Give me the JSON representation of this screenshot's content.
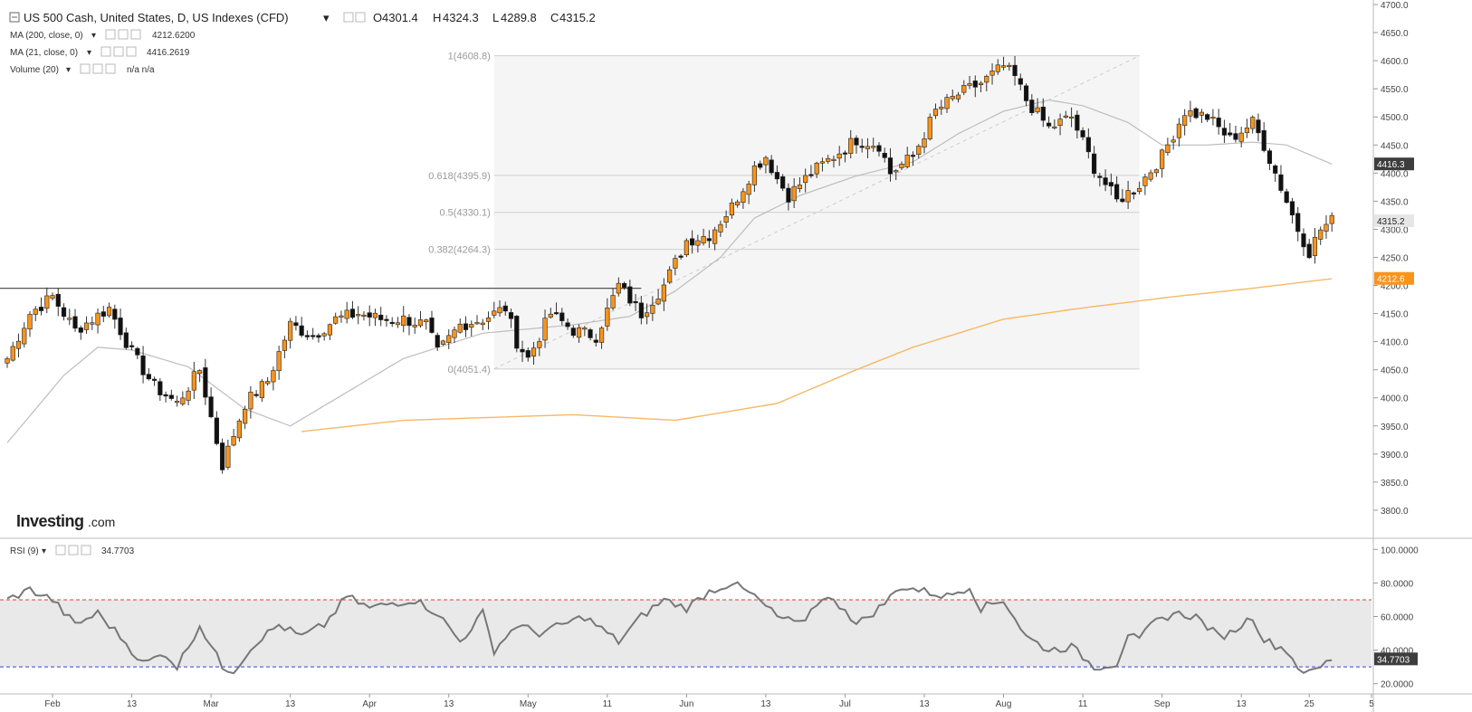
{
  "header": {
    "symbol": "US 500 Cash, United States, D, US Indexes (CFD)",
    "o_label": "O",
    "o": "4301.4",
    "h_label": "H",
    "h": "4324.3",
    "l_label": "L",
    "l": "4289.8",
    "c_label": "C",
    "c": "4315.2"
  },
  "indicators": [
    {
      "label": "MA (200, close, 0)",
      "value": "4212.6200",
      "color": "#f39c12"
    },
    {
      "label": "MA (21, close, 0)",
      "value": "4416.2619",
      "color": "#444444"
    },
    {
      "label": "Volume (20)",
      "value": "n/a  n/a",
      "color": "#444444"
    }
  ],
  "rsi_label": "RSI (9)",
  "rsi_value": "34.7703",
  "watermark": {
    "bold": "Investing",
    "light": ".com"
  },
  "price_badges": {
    "ma21": "4416.3",
    "last": "4315.2",
    "ma200": "4212.6"
  },
  "colors": {
    "up": "#f7941d",
    "down": "#111111",
    "ma200": "#f7b866",
    "ma21": "#bdbdbd",
    "rsi": "#777777",
    "ob": "#e53935",
    "os": "#2f43e0",
    "badge_dark": "#3d3d3d",
    "badge_orange": "#f7941d"
  },
  "chart_data": {
    "type": "candlestick",
    "x_axis": {
      "labels": [
        "Feb",
        "13",
        "Mar",
        "13",
        "Apr",
        "13",
        "May",
        "11",
        "Jun",
        "13",
        "Jul",
        "13",
        "Aug",
        "11",
        "Sep",
        "13",
        "25",
        "5"
      ],
      "label_indices": [
        8,
        22,
        36,
        50,
        64,
        78,
        92,
        106,
        120,
        134,
        148,
        162,
        176,
        190,
        204,
        218,
        230,
        241
      ]
    },
    "y_axis": {
      "min": 3750,
      "max": 4700,
      "ticks": [
        "4700.0",
        "4650.0",
        "4600.0",
        "4550.0",
        "4500.0",
        "4450.0",
        "4400.0",
        "4350.0",
        "4300.0",
        "4250.0",
        "4200.0",
        "4150.0",
        "4100.0",
        "4050.0",
        "4000.0",
        "3950.0",
        "3900.0",
        "3850.0",
        "3800.0"
      ]
    },
    "rsi_axis": {
      "min": 15,
      "max": 105,
      "ticks": [
        "100.0000",
        "80.0000",
        "60.0000",
        "40.0000",
        "20.0000"
      ],
      "overbought": 70,
      "oversold": 30
    },
    "horizontal_line": 4195,
    "fibonacci": {
      "start_index": 86,
      "end_index": 200,
      "low": 4051.4,
      "high": 4608.8,
      "levels": [
        {
          "label": "1(4608.8)",
          "value": 4608.8
        },
        {
          "label": "0.618(4395.9)",
          "value": 4395.9
        },
        {
          "label": "0.5(4330.1)",
          "value": 4330.1
        },
        {
          "label": "0.382(4264.3)",
          "value": 4264.3
        },
        {
          "label": "0(4051.4)",
          "value": 4051.4
        }
      ]
    },
    "close_anchors": [
      [
        0,
        4070
      ],
      [
        4,
        4150
      ],
      [
        8,
        4180
      ],
      [
        12,
        4120
      ],
      [
        18,
        4160
      ],
      [
        22,
        4080
      ],
      [
        26,
        4020
      ],
      [
        30,
        3990
      ],
      [
        34,
        4050
      ],
      [
        38,
        3880
      ],
      [
        42,
        3990
      ],
      [
        46,
        4030
      ],
      [
        50,
        4130
      ],
      [
        54,
        4110
      ],
      [
        58,
        4140
      ],
      [
        62,
        4150
      ],
      [
        66,
        4140
      ],
      [
        70,
        4140
      ],
      [
        74,
        4130
      ],
      [
        76,
        4080
      ],
      [
        80,
        4130
      ],
      [
        84,
        4140
      ],
      [
        88,
        4160
      ],
      [
        90,
        4100
      ],
      [
        92,
        4070
      ],
      [
        96,
        4150
      ],
      [
        100,
        4120
      ],
      [
        104,
        4110
      ],
      [
        108,
        4200
      ],
      [
        112,
        4150
      ],
      [
        116,
        4200
      ],
      [
        120,
        4280
      ],
      [
        124,
        4290
      ],
      [
        128,
        4340
      ],
      [
        132,
        4410
      ],
      [
        134,
        4430
      ],
      [
        136,
        4390
      ],
      [
        138,
        4360
      ],
      [
        142,
        4400
      ],
      [
        146,
        4430
      ],
      [
        150,
        4460
      ],
      [
        154,
        4450
      ],
      [
        156,
        4400
      ],
      [
        160,
        4430
      ],
      [
        164,
        4510
      ],
      [
        168,
        4540
      ],
      [
        172,
        4560
      ],
      [
        176,
        4590
      ],
      [
        178,
        4570
      ],
      [
        180,
        4530
      ],
      [
        184,
        4480
      ],
      [
        188,
        4500
      ],
      [
        192,
        4410
      ],
      [
        196,
        4350
      ],
      [
        200,
        4380
      ],
      [
        204,
        4430
      ],
      [
        208,
        4510
      ],
      [
        212,
        4500
      ],
      [
        216,
        4460
      ],
      [
        220,
        4490
      ],
      [
        222,
        4450
      ],
      [
        226,
        4350
      ],
      [
        228,
        4300
      ],
      [
        230,
        4260
      ],
      [
        232,
        4300
      ],
      [
        234,
        4315
      ]
    ],
    "ma200_anchors": [
      [
        52,
        3940
      ],
      [
        70,
        3960
      ],
      [
        100,
        3970
      ],
      [
        118,
        3960
      ],
      [
        136,
        3990
      ],
      [
        150,
        4050
      ],
      [
        160,
        4090
      ],
      [
        176,
        4140
      ],
      [
        190,
        4160
      ],
      [
        206,
        4180
      ],
      [
        220,
        4195
      ],
      [
        234,
        4212
      ]
    ],
    "ma21_anchors": [
      [
        0,
        3920
      ],
      [
        10,
        4040
      ],
      [
        16,
        4090
      ],
      [
        22,
        4085
      ],
      [
        32,
        4055
      ],
      [
        42,
        3980
      ],
      [
        50,
        3950
      ],
      [
        60,
        4010
      ],
      [
        70,
        4070
      ],
      [
        84,
        4115
      ],
      [
        100,
        4130
      ],
      [
        110,
        4145
      ],
      [
        118,
        4190
      ],
      [
        126,
        4250
      ],
      [
        132,
        4320
      ],
      [
        140,
        4360
      ],
      [
        150,
        4395
      ],
      [
        160,
        4420
      ],
      [
        168,
        4470
      ],
      [
        176,
        4510
      ],
      [
        184,
        4530
      ],
      [
        190,
        4520
      ],
      [
        198,
        4490
      ],
      [
        204,
        4450
      ],
      [
        212,
        4450
      ],
      [
        220,
        4455
      ],
      [
        226,
        4450
      ],
      [
        234,
        4416
      ]
    ],
    "rsi_anchors": [
      [
        0,
        70
      ],
      [
        4,
        76
      ],
      [
        8,
        70
      ],
      [
        12,
        55
      ],
      [
        16,
        62
      ],
      [
        20,
        48
      ],
      [
        24,
        32
      ],
      [
        28,
        38
      ],
      [
        30,
        30
      ],
      [
        34,
        55
      ],
      [
        38,
        30
      ],
      [
        40,
        28
      ],
      [
        44,
        45
      ],
      [
        48,
        55
      ],
      [
        52,
        48
      ],
      [
        56,
        55
      ],
      [
        60,
        72
      ],
      [
        64,
        65
      ],
      [
        68,
        68
      ],
      [
        72,
        70
      ],
      [
        76,
        62
      ],
      [
        80,
        45
      ],
      [
        84,
        62
      ],
      [
        86,
        40
      ],
      [
        90,
        55
      ],
      [
        94,
        50
      ],
      [
        98,
        55
      ],
      [
        102,
        60
      ],
      [
        106,
        50
      ],
      [
        108,
        45
      ],
      [
        112,
        60
      ],
      [
        116,
        70
      ],
      [
        120,
        65
      ],
      [
        124,
        75
      ],
      [
        128,
        80
      ],
      [
        132,
        72
      ],
      [
        136,
        60
      ],
      [
        140,
        55
      ],
      [
        144,
        72
      ],
      [
        148,
        65
      ],
      [
        150,
        55
      ],
      [
        154,
        65
      ],
      [
        158,
        78
      ],
      [
        162,
        75
      ],
      [
        166,
        72
      ],
      [
        170,
        78
      ],
      [
        172,
        65
      ],
      [
        176,
        70
      ],
      [
        180,
        48
      ],
      [
        184,
        40
      ],
      [
        188,
        42
      ],
      [
        192,
        30
      ],
      [
        196,
        32
      ],
      [
        198,
        50
      ],
      [
        200,
        45
      ],
      [
        202,
        55
      ],
      [
        206,
        62
      ],
      [
        210,
        60
      ],
      [
        214,
        48
      ],
      [
        216,
        50
      ],
      [
        220,
        60
      ],
      [
        222,
        46
      ],
      [
        226,
        40
      ],
      [
        228,
        30
      ],
      [
        230,
        26
      ],
      [
        232,
        30
      ],
      [
        234,
        35
      ]
    ]
  }
}
